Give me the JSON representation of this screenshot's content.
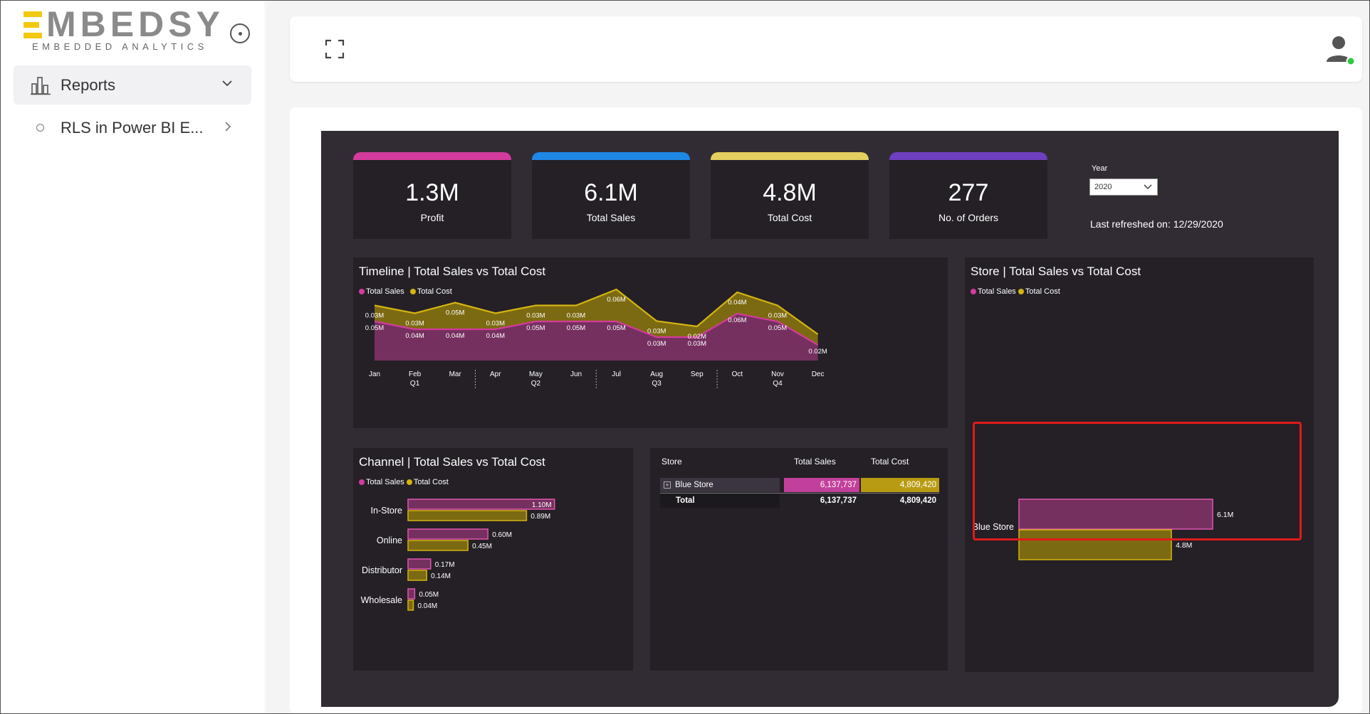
{
  "brand": {
    "name": "MBEDSY",
    "tagline": "EMBEDDED ANALYTICS",
    "accent": "#f2c811"
  },
  "sidebar": {
    "items": [
      {
        "label": "Reports",
        "icon": "bar-chart-icon",
        "expanded": true
      },
      {
        "label": "RLS in Power BI E...",
        "icon": "circle-icon"
      }
    ]
  },
  "topbar": {
    "expand_icon": "fullscreen-icon",
    "user_icon": "user-avatar-icon",
    "user_status_color": "#2ecc40"
  },
  "report": {
    "kpis": [
      {
        "value": "1.3M",
        "label": "Profit",
        "color": "#d33b9c"
      },
      {
        "value": "6.1M",
        "label": "Total Sales",
        "color": "#1e88e5"
      },
      {
        "value": "4.8M",
        "label": "Total Cost",
        "color": "#e2cf5f"
      },
      {
        "value": "277",
        "label": "No. of Orders",
        "color": "#6e3fbf"
      }
    ],
    "year_filter": {
      "label": "Year",
      "value": "2020"
    },
    "last_refreshed": "Last refreshed on: 12/29/2020",
    "table": {
      "headers": [
        "Store",
        "Total Sales",
        "Total Cost"
      ],
      "rows": [
        {
          "store": "Blue Store",
          "sales": "6,137,737",
          "cost": "4,809,420"
        }
      ],
      "total": {
        "label": "Total",
        "sales": "6,137,737",
        "cost": "4,809,420"
      }
    }
  },
  "chart_data": [
    {
      "type": "area",
      "title": "Timeline | Total Sales vs Total Cost",
      "legend": [
        "Total Sales",
        "Total Cost"
      ],
      "categories": [
        "Jan",
        "Feb",
        "Mar",
        "Apr",
        "May",
        "Jun",
        "Jul",
        "Aug",
        "Sep",
        "Oct",
        "Nov",
        "Dec"
      ],
      "quarters": [
        "Q1",
        "Q2",
        "Q3",
        "Q4"
      ],
      "series": [
        {
          "name": "Total Sales",
          "color": "#c2409b",
          "values": [
            0.05,
            0.04,
            0.04,
            0.04,
            0.05,
            0.05,
            0.05,
            0.03,
            0.03,
            0.06,
            0.05,
            0.02
          ],
          "labels": [
            "0.05M",
            "0.04M",
            "0.04M",
            "0.04M",
            "0.05M",
            "0.05M",
            "0.05M",
            "0.03M",
            "0.03M",
            "0.06M",
            "0.05M",
            "0.02M"
          ]
        },
        {
          "name": "Total Cost",
          "color": "#b89b12",
          "values": [
            0.03,
            0.03,
            0.05,
            0.03,
            0.03,
            0.03,
            0.06,
            0.03,
            0.02,
            0.04,
            0.03,
            0.02
          ],
          "labels": [
            "0.03M",
            "0.03M",
            "0.05M",
            "0.03M",
            "0.03M",
            "0.03M",
            "0.06M",
            "0.03M",
            "0.02M",
            "0.04M",
            "0.03M",
            ""
          ]
        }
      ]
    },
    {
      "type": "bar",
      "title": "Channel | Total Sales vs Total Cost",
      "legend": [
        "Total Sales",
        "Total Cost"
      ],
      "categories": [
        "In-Store",
        "Online",
        "Distributor",
        "Wholesale"
      ],
      "series": [
        {
          "name": "Total Sales",
          "values": [
            1.1,
            0.6,
            0.17,
            0.05
          ],
          "labels": [
            "1.10M",
            "0.60M",
            "0.17M",
            "0.05M"
          ]
        },
        {
          "name": "Total Cost",
          "values": [
            0.89,
            0.45,
            0.14,
            0.04
          ],
          "labels": [
            "0.89M",
            "0.45M",
            "0.14M",
            "0.04M"
          ]
        }
      ]
    },
    {
      "type": "bar",
      "title": "Store | Total Sales vs Total Cost",
      "legend": [
        "Total Sales",
        "Total Cost"
      ],
      "categories": [
        "Blue Store"
      ],
      "series": [
        {
          "name": "Total Sales",
          "values": [
            6.1
          ],
          "labels": [
            "6.1M"
          ]
        },
        {
          "name": "Total Cost",
          "values": [
            4.8
          ],
          "labels": [
            "4.8M"
          ]
        }
      ]
    }
  ]
}
